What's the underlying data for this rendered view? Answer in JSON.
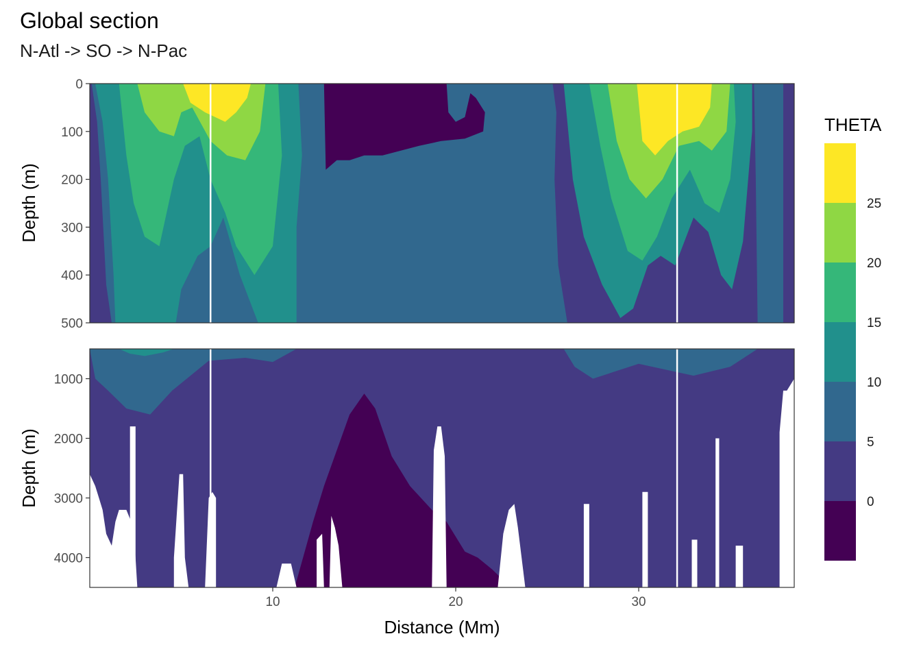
{
  "chart_data": {
    "type": "heatmap",
    "subtype": "filled-contour section (two depth panels)",
    "title": "Global section",
    "subtitle": "N-Atl -> SO -> N-Pac",
    "xlabel": "Distance (Mm)",
    "ylabel": "Depth (m)",
    "xlim": [
      0.0,
      38.5
    ],
    "x_ticks": [
      10,
      20,
      30
    ],
    "grid": true,
    "legend": {
      "title": "THETA",
      "placement": "right",
      "breaks": [
        0,
        5,
        10,
        15,
        20,
        25
      ],
      "levels": [
        {
          "range": [
            -5,
            0
          ],
          "color": "#440154"
        },
        {
          "range": [
            0,
            5
          ],
          "color": "#443A83"
        },
        {
          "range": [
            5,
            10
          ],
          "color": "#31688E"
        },
        {
          "range": [
            10,
            15
          ],
          "color": "#21908C"
        },
        {
          "range": [
            15,
            20
          ],
          "color": "#35B779"
        },
        {
          "range": [
            20,
            25
          ],
          "color": "#8FD744"
        },
        {
          "range": [
            25,
            30
          ],
          "color": "#FDE725"
        }
      ]
    },
    "section_marks_x": [
      6.6,
      32.1
    ],
    "panels": [
      {
        "name": "upper",
        "ylim": [
          0,
          500
        ],
        "y_ticks": [
          0,
          100,
          200,
          300,
          400,
          500
        ],
        "contours": [
          {
            "level": 5,
            "boundary": [
              [
                0.1,
                0
              ],
              [
                0.4,
                80
              ],
              [
                0.6,
                200
              ],
              [
                0.9,
                420
              ],
              [
                1.2,
                500
              ],
              [
                26.1,
                500
              ],
              [
                25.6,
                380
              ],
              [
                25.4,
                200
              ],
              [
                25.5,
                60
              ],
              [
                25.3,
                0
              ]
            ]
          },
          {
            "level": 5,
            "boundary": [
              [
                36.3,
                0
              ],
              [
                36.4,
                200
              ],
              [
                36.5,
                500
              ],
              [
                37.9,
                500
              ],
              [
                37.9,
                0
              ]
            ]
          },
          {
            "level": 10,
            "boundary": [
              [
                0.3,
                0
              ],
              [
                0.7,
                80
              ],
              [
                1.0,
                200
              ],
              [
                1.3,
                400
              ],
              [
                1.4,
                500
              ],
              [
                4.7,
                500
              ],
              [
                5.0,
                430
              ],
              [
                5.9,
                360
              ],
              [
                6.6,
                340
              ],
              [
                7.3,
                280
              ],
              [
                8.2,
                400
              ],
              [
                9.2,
                500
              ],
              [
                11.3,
                500
              ],
              [
                11.3,
                300
              ],
              [
                11.6,
                150
              ],
              [
                11.4,
                0
              ]
            ]
          },
          {
            "level": 10,
            "boundary": [
              [
                25.9,
                0
              ],
              [
                26.4,
                200
              ],
              [
                27.0,
                320
              ],
              [
                28.0,
                420
              ],
              [
                29.0,
                490
              ],
              [
                29.7,
                470
              ],
              [
                30.5,
                380
              ],
              [
                31.2,
                360
              ],
              [
                32.0,
                380
              ],
              [
                33.0,
                280
              ],
              [
                33.8,
                310
              ],
              [
                34.5,
                400
              ],
              [
                35.1,
                430
              ],
              [
                35.7,
                330
              ],
              [
                36.2,
                100
              ],
              [
                36.2,
                0
              ]
            ]
          },
          {
            "level": 15,
            "boundary": [
              [
                1.6,
                0
              ],
              [
                2.0,
                150
              ],
              [
                2.4,
                250
              ],
              [
                3.0,
                320
              ],
              [
                3.8,
                340
              ],
              [
                4.6,
                200
              ],
              [
                5.2,
                130
              ],
              [
                6.0,
                110
              ],
              [
                6.6,
                200
              ],
              [
                7.4,
                270
              ],
              [
                8.0,
                340
              ],
              [
                9.0,
                400
              ],
              [
                10.0,
                340
              ],
              [
                10.5,
                150
              ],
              [
                10.3,
                0
              ]
            ]
          },
          {
            "level": 15,
            "boundary": [
              [
                27.3,
                0
              ],
              [
                27.9,
                130
              ],
              [
                28.5,
                240
              ],
              [
                29.4,
                350
              ],
              [
                30.2,
                370
              ],
              [
                31.0,
                320
              ],
              [
                31.8,
                240
              ],
              [
                32.8,
                180
              ],
              [
                33.6,
                250
              ],
              [
                34.4,
                270
              ],
              [
                35.0,
                200
              ],
              [
                35.3,
                80
              ],
              [
                35.2,
                0
              ]
            ]
          },
          {
            "level": 20,
            "boundary": [
              [
                2.6,
                0
              ],
              [
                3.0,
                60
              ],
              [
                3.8,
                100
              ],
              [
                4.6,
                110
              ],
              [
                5.0,
                60
              ],
              [
                5.6,
                50
              ],
              [
                6.6,
                120
              ],
              [
                7.5,
                150
              ],
              [
                8.5,
                160
              ],
              [
                9.3,
                100
              ],
              [
                9.6,
                0
              ]
            ]
          },
          {
            "level": 20,
            "boundary": [
              [
                28.3,
                0
              ],
              [
                28.8,
                120
              ],
              [
                29.5,
                200
              ],
              [
                30.4,
                240
              ],
              [
                31.3,
                200
              ],
              [
                32.2,
                130
              ],
              [
                33.3,
                120
              ],
              [
                34.0,
                140
              ],
              [
                34.8,
                100
              ],
              [
                35.0,
                0
              ]
            ]
          },
          {
            "level": 25,
            "boundary": [
              [
                5.1,
                0
              ],
              [
                5.5,
                40
              ],
              [
                6.3,
                60
              ],
              [
                7.4,
                80
              ],
              [
                8.0,
                60
              ],
              [
                8.6,
                30
              ],
              [
                8.8,
                0
              ]
            ]
          },
          {
            "level": 25,
            "boundary": [
              [
                29.9,
                0
              ],
              [
                30.2,
                120
              ],
              [
                30.9,
                150
              ],
              [
                31.6,
                120
              ],
              [
                32.4,
                100
              ],
              [
                33.3,
                90
              ],
              [
                33.9,
                50
              ],
              [
                34.0,
                0
              ]
            ]
          }
        ],
        "cold_tongue_below_0": [
          [
            12.8,
            0
          ],
          [
            12.9,
            180
          ],
          [
            13.5,
            160
          ],
          [
            14.2,
            160
          ],
          [
            15.0,
            150
          ],
          [
            16.0,
            150
          ],
          [
            17.0,
            140
          ],
          [
            18.0,
            130
          ],
          [
            19.2,
            120
          ],
          [
            20.5,
            115
          ],
          [
            21.5,
            100
          ],
          [
            21.6,
            60
          ],
          [
            21.1,
            30
          ],
          [
            20.8,
            20
          ],
          [
            20.5,
            70
          ],
          [
            20.0,
            80
          ],
          [
            19.6,
            60
          ],
          [
            19.5,
            0
          ]
        ]
      },
      {
        "name": "lower",
        "ylim": [
          500,
          4500
        ],
        "y_ticks": [
          1000,
          2000,
          3000,
          4000
        ],
        "contours": [
          {
            "level": 5,
            "boundary": [
              [
                0.0,
                500
              ],
              [
                0.3,
                1000
              ],
              [
                1.0,
                1200
              ],
              [
                2.0,
                1500
              ],
              [
                3.3,
                1600
              ],
              [
                4.5,
                1200
              ],
              [
                6.5,
                700
              ],
              [
                8.5,
                650
              ],
              [
                10.0,
                720
              ],
              [
                11.3,
                500
              ]
            ]
          },
          {
            "level": 5,
            "boundary": [
              [
                25.9,
                500
              ],
              [
                26.5,
                800
              ],
              [
                27.5,
                1000
              ],
              [
                28.5,
                900
              ],
              [
                30.0,
                750
              ],
              [
                31.5,
                850
              ],
              [
                33.0,
                950
              ],
              [
                35.0,
                800
              ],
              [
                36.5,
                500
              ]
            ]
          },
          {
            "level": 10,
            "boundary": [
              [
                1.6,
                500
              ],
              [
                2.2,
                580
              ],
              [
                3.0,
                620
              ],
              [
                4.0,
                560
              ],
              [
                4.6,
                500
              ]
            ]
          }
        ],
        "cold_water_below_0": [
          [
            11.2,
            4500
          ],
          [
            12.2,
            3400
          ],
          [
            12.8,
            2800
          ],
          [
            13.5,
            2200
          ],
          [
            14.2,
            1600
          ],
          [
            15.0,
            1250
          ],
          [
            15.6,
            1500
          ],
          [
            16.5,
            2300
          ],
          [
            17.5,
            2800
          ],
          [
            18.7,
            3200
          ],
          [
            19.5,
            3400
          ],
          [
            20.5,
            3900
          ],
          [
            21.2,
            4000
          ],
          [
            22.0,
            4200
          ],
          [
            23.0,
            4500
          ]
        ]
      }
    ]
  }
}
